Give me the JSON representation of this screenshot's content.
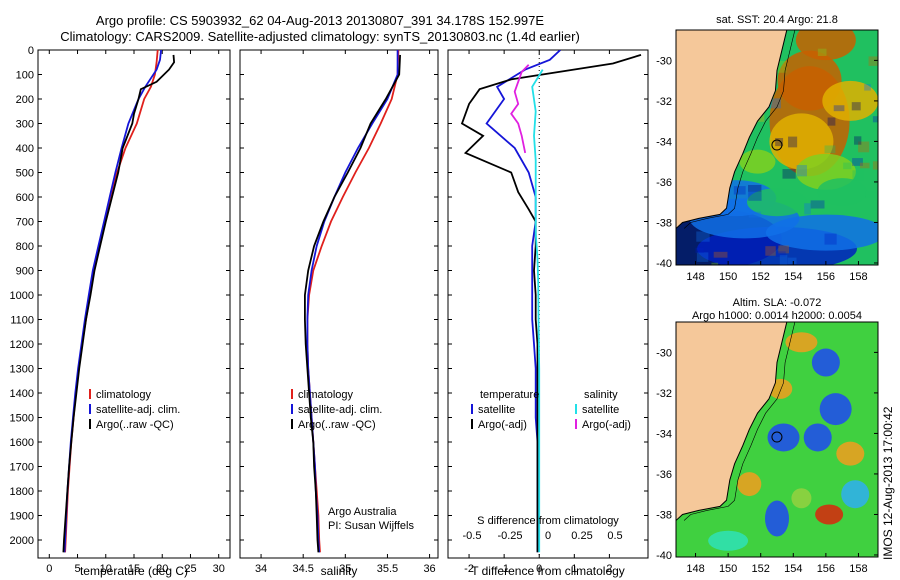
{
  "title": {
    "line1": "Argo profile: CS 5903932_62 04-Aug-2013 20130807_391 34.178S 152.997E",
    "line2": "Climatology: CARS2009. Satellite-adjusted climatology: synTS_20130803.nc (1.4d earlier)"
  },
  "stamp": "IMOS 12-Aug-2013 17:00:42",
  "colors": {
    "climatology": "#e0201c",
    "satellite": "#1515d8",
    "argo": "#000000",
    "sal_sat": "#22e0e8",
    "sal_argo": "#e020e0",
    "land": "#f5c89a"
  },
  "depth_axis": {
    "ticks": [
      "0",
      "100",
      "200",
      "300",
      "400",
      "500",
      "600",
      "700",
      "800",
      "900",
      "1000",
      "1100",
      "1200",
      "1300",
      "1400",
      "1500",
      "1600",
      "1700",
      "1800",
      "1900",
      "2000"
    ]
  },
  "chart_data": [
    {
      "type": "line",
      "name": "temperature-profile",
      "xlabel": "temperature (deg C)",
      "xlim": [
        -2,
        32
      ],
      "ylim": [
        2060,
        0
      ],
      "x_ticks": [
        "0",
        "5",
        "10",
        "15",
        "20",
        "25",
        "30"
      ],
      "legend": [
        "climatology",
        "satellite-adj. clim.",
        "Argo(..raw -QC)"
      ],
      "series": [
        {
          "name": "climatology",
          "points": [
            [
              19.2,
              0
            ],
            [
              19.0,
              50
            ],
            [
              18.7,
              100
            ],
            [
              18.0,
              150
            ],
            [
              16.8,
              200
            ],
            [
              15.5,
              300
            ],
            [
              13.5,
              400
            ],
            [
              12.0,
              500
            ],
            [
              10.8,
              600
            ],
            [
              9.8,
              700
            ],
            [
              8.9,
              800
            ],
            [
              7.9,
              900
            ],
            [
              7.2,
              1000
            ],
            [
              6.5,
              1100
            ],
            [
              5.8,
              1200
            ],
            [
              5.2,
              1300
            ],
            [
              4.7,
              1400
            ],
            [
              4.3,
              1500
            ],
            [
              3.9,
              1600
            ],
            [
              3.6,
              1700
            ],
            [
              3.3,
              1800
            ],
            [
              3.1,
              1900
            ],
            [
              2.9,
              2000
            ],
            [
              2.8,
              2050
            ]
          ]
        },
        {
          "name": "satellite-adj. clim.",
          "points": [
            [
              19.8,
              0
            ],
            [
              19.6,
              40
            ],
            [
              19.0,
              80
            ],
            [
              17.0,
              150
            ],
            [
              15.8,
              200
            ],
            [
              14.0,
              300
            ],
            [
              12.8,
              400
            ],
            [
              11.7,
              500
            ],
            [
              10.7,
              600
            ],
            [
              9.7,
              700
            ],
            [
              8.7,
              800
            ],
            [
              7.7,
              900
            ],
            [
              7.0,
              1000
            ],
            [
              6.3,
              1100
            ],
            [
              5.7,
              1200
            ],
            [
              5.1,
              1300
            ],
            [
              4.6,
              1400
            ],
            [
              4.2,
              1500
            ],
            [
              3.8,
              1600
            ],
            [
              3.5,
              1700
            ],
            [
              3.2,
              1800
            ],
            [
              3.0,
              1900
            ],
            [
              2.8,
              2000
            ],
            [
              2.7,
              2050
            ]
          ]
        },
        {
          "name": "Argo(..raw -QC)",
          "points": [
            [
              22.0,
              20
            ],
            [
              22.1,
              50
            ],
            [
              21.2,
              80
            ],
            [
              19.0,
              130
            ],
            [
              16.2,
              160
            ],
            [
              15.8,
              200
            ],
            [
              15.0,
              260
            ],
            [
              14.7,
              300
            ],
            [
              13.0,
              400
            ],
            [
              12.2,
              500
            ],
            [
              11.1,
              600
            ],
            [
              10.0,
              700
            ],
            [
              9.0,
              800
            ],
            [
              8.0,
              900
            ],
            [
              7.3,
              1000
            ],
            [
              6.5,
              1100
            ],
            [
              5.9,
              1200
            ],
            [
              5.3,
              1300
            ],
            [
              4.8,
              1400
            ],
            [
              4.3,
              1500
            ],
            [
              3.9,
              1600
            ],
            [
              3.5,
              1700
            ],
            [
              3.2,
              1800
            ],
            [
              2.9,
              1900
            ],
            [
              2.6,
              2000
            ],
            [
              2.5,
              2050
            ]
          ]
        }
      ]
    },
    {
      "type": "line",
      "name": "salinity-profile",
      "xlabel": "salinity",
      "xlim": [
        33.75,
        36.1
      ],
      "ylim": [
        2060,
        0
      ],
      "x_ticks": [
        "34",
        "34.5",
        "35",
        "35.5",
        "36"
      ],
      "legend": [
        "climatology",
        "satellite-adj. clim.",
        "Argo(..raw -QC)"
      ],
      "notes": [
        "Argo Australia",
        "PI: Susan Wijffels"
      ],
      "series": [
        {
          "name": "climatology",
          "points": [
            [
              35.63,
              0
            ],
            [
              35.62,
              100
            ],
            [
              35.55,
              200
            ],
            [
              35.42,
              300
            ],
            [
              35.28,
              400
            ],
            [
              35.12,
              500
            ],
            [
              34.97,
              600
            ],
            [
              34.83,
              700
            ],
            [
              34.72,
              800
            ],
            [
              34.62,
              900
            ],
            [
              34.57,
              1000
            ],
            [
              34.55,
              1100
            ],
            [
              34.55,
              1200
            ],
            [
              34.56,
              1300
            ],
            [
              34.58,
              1400
            ],
            [
              34.6,
              1500
            ],
            [
              34.62,
              1600
            ],
            [
              34.64,
              1700
            ],
            [
              34.66,
              1800
            ],
            [
              34.68,
              1900
            ],
            [
              34.69,
              2000
            ],
            [
              34.7,
              2050
            ]
          ]
        },
        {
          "name": "satellite-adj. clim.",
          "points": [
            [
              35.62,
              0
            ],
            [
              35.62,
              100
            ],
            [
              35.5,
              200
            ],
            [
              35.32,
              300
            ],
            [
              35.15,
              400
            ],
            [
              35.0,
              500
            ],
            [
              34.87,
              600
            ],
            [
              34.75,
              700
            ],
            [
              34.66,
              800
            ],
            [
              34.6,
              900
            ],
            [
              34.56,
              1000
            ],
            [
              34.55,
              1100
            ],
            [
              34.55,
              1200
            ],
            [
              34.56,
              1300
            ],
            [
              34.58,
              1400
            ],
            [
              34.6,
              1500
            ],
            [
              34.62,
              1600
            ],
            [
              34.64,
              1700
            ],
            [
              34.65,
              1800
            ],
            [
              34.67,
              1900
            ],
            [
              34.68,
              2000
            ],
            [
              34.69,
              2050
            ]
          ]
        },
        {
          "name": "Argo(..raw -QC)",
          "points": [
            [
              35.65,
              20
            ],
            [
              35.64,
              100
            ],
            [
              35.48,
              200
            ],
            [
              35.3,
              300
            ],
            [
              35.18,
              400
            ],
            [
              35.03,
              500
            ],
            [
              34.87,
              600
            ],
            [
              34.74,
              700
            ],
            [
              34.63,
              800
            ],
            [
              34.56,
              900
            ],
            [
              34.52,
              1000
            ],
            [
              34.52,
              1100
            ],
            [
              34.53,
              1200
            ],
            [
              34.55,
              1300
            ],
            [
              34.57,
              1400
            ],
            [
              34.59,
              1500
            ],
            [
              34.62,
              1600
            ],
            [
              34.63,
              1700
            ],
            [
              34.65,
              1800
            ],
            [
              34.66,
              1900
            ],
            [
              34.67,
              2000
            ],
            [
              34.68,
              2050
            ]
          ]
        }
      ]
    },
    {
      "type": "line",
      "name": "difference-profile",
      "xlabel": "T difference from climatology",
      "xlabel_top": "S difference from climatology",
      "xlim": [
        -2.6,
        3.1
      ],
      "ylim": [
        2060,
        0
      ],
      "x_ticks": [
        "-2",
        "-1",
        "0",
        "1",
        "2"
      ],
      "x_ticks_s": [
        "-0.5",
        "-0.25",
        "0",
        "0.25",
        "0.5"
      ],
      "legend_t": [
        "temperature",
        "satellite",
        "Argo(-adj)"
      ],
      "legend_s": [
        "salinity",
        "satellite",
        "Argo(-adj)"
      ],
      "series": [
        {
          "name": "T satellite",
          "points": [
            [
              0.6,
              0
            ],
            [
              0.3,
              40
            ],
            [
              -0.4,
              80
            ],
            [
              -1.2,
              150
            ],
            [
              -1.0,
              200
            ],
            [
              -1.5,
              300
            ],
            [
              -0.7,
              400
            ],
            [
              -0.3,
              500
            ],
            [
              -0.1,
              600
            ],
            [
              -0.1,
              700
            ],
            [
              -0.2,
              800
            ],
            [
              -0.2,
              900
            ],
            [
              -0.2,
              1000
            ],
            [
              -0.2,
              1100
            ],
            [
              -0.15,
              1200
            ],
            [
              -0.1,
              1300
            ],
            [
              -0.1,
              1400
            ],
            [
              -0.1,
              1500
            ],
            [
              -0.05,
              1600
            ],
            [
              -0.05,
              1700
            ],
            [
              -0.05,
              1800
            ],
            [
              -0.05,
              1900
            ],
            [
              -0.05,
              2000
            ],
            [
              -0.05,
              2050
            ]
          ]
        },
        {
          "name": "T Argo(-adj)",
          "points": [
            [
              2.9,
              20
            ],
            [
              2.1,
              55
            ],
            [
              -0.8,
              120
            ],
            [
              -1.7,
              160
            ],
            [
              -2.0,
              220
            ],
            [
              -2.2,
              300
            ],
            [
              -1.6,
              350
            ],
            [
              -2.1,
              420
            ],
            [
              -0.8,
              500
            ],
            [
              -0.6,
              580
            ],
            [
              -0.3,
              650
            ],
            [
              -0.1,
              700
            ],
            [
              -0.1,
              800
            ],
            [
              -0.15,
              900
            ],
            [
              -0.1,
              1000
            ],
            [
              -0.1,
              1100
            ],
            [
              -0.05,
              1200
            ],
            [
              -0.05,
              1300
            ],
            [
              -0.05,
              1400
            ],
            [
              -0.05,
              1500
            ],
            [
              -0.05,
              1600
            ],
            [
              -0.05,
              1700
            ],
            [
              -0.05,
              1800
            ],
            [
              -0.05,
              1900
            ],
            [
              -0.05,
              2000
            ],
            [
              -0.05,
              2050
            ]
          ]
        },
        {
          "name": "S satellite",
          "points": [
            [
              0.1,
              80
            ],
            [
              -0.2,
              150
            ],
            [
              -0.1,
              250
            ],
            [
              -0.15,
              350
            ],
            [
              -0.1,
              450
            ],
            [
              -0.1,
              550
            ],
            [
              -0.1,
              650
            ],
            [
              -0.1,
              750
            ],
            [
              -0.05,
              850
            ],
            [
              -0.03,
              950
            ],
            [
              -0.02,
              1100
            ],
            [
              0.0,
              1300
            ],
            [
              0.0,
              1500
            ],
            [
              0.0,
              1700
            ],
            [
              0.0,
              1900
            ],
            [
              0.0,
              2050
            ]
          ]
        },
        {
          "name": "S Argo(-adj)",
          "points": [
            [
              -0.3,
              60
            ],
            [
              -0.5,
              90
            ],
            [
              -0.6,
              130
            ],
            [
              -0.7,
              170
            ],
            [
              -0.6,
              220
            ],
            [
              -0.8,
              260
            ],
            [
              -0.6,
              300
            ],
            [
              -0.5,
              350
            ],
            [
              -0.4,
              420
            ]
          ]
        }
      ]
    },
    {
      "type": "heatmap",
      "name": "sst-map",
      "title": "sat. SST: 20.4  Argo: 21.8",
      "x_ticks": [
        "148",
        "150",
        "152",
        "154",
        "156",
        "158"
      ],
      "y_ticks": [
        "-30",
        "-32",
        "-34",
        "-36",
        "-38",
        "-40"
      ],
      "xlim": [
        146.8,
        159.2
      ],
      "ylim": [
        -40.1,
        -28.5
      ],
      "marker": {
        "lon": 152.997,
        "lat": -34.178
      },
      "colors": [
        "#00006a",
        "#0020c0",
        "#1070e8",
        "#20c060",
        "#80d020",
        "#e0b000",
        "#c86000"
      ]
    },
    {
      "type": "heatmap",
      "name": "sla-map",
      "title": "Altim. SLA: -0.072",
      "subtitle": "Argo h1000: 0.0014 h2000: 0.0054",
      "x_ticks": [
        "148",
        "150",
        "152",
        "154",
        "156",
        "158"
      ],
      "y_ticks": [
        "-30",
        "-32",
        "-34",
        "-36",
        "-38",
        "-40"
      ],
      "xlim": [
        146.8,
        159.2
      ],
      "ylim": [
        -40.1,
        -28.5
      ],
      "marker": {
        "lon": 152.997,
        "lat": -34.178
      },
      "colors": [
        "#2050e8",
        "#30b0e8",
        "#30e0b0",
        "#40d040",
        "#90d040",
        "#e8a020",
        "#d03010"
      ]
    }
  ]
}
